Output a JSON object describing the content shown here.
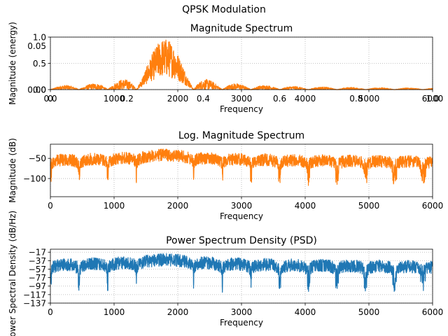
{
  "figure": {
    "suptitle": "QPSK Modulation"
  },
  "chart_data": [
    {
      "id": "magnitude",
      "type": "area",
      "title": "Magnitude Spectrum",
      "xlabel": "Frequency",
      "ylabel": "Magnitude (energy)",
      "xlim": [
        0,
        6000
      ],
      "ylim": [
        0,
        1.0
      ],
      "color": "#ff7f0e",
      "grid": true,
      "xticks": [
        0,
        1000,
        2000,
        3000,
        4000,
        5000,
        6000
      ],
      "xtick_labels": [
        "0",
        "1000",
        "2000",
        "3000",
        "4000",
        "5000",
        "6000"
      ],
      "yticks": [
        0,
        0.5,
        1.0
      ],
      "ytick_labels": [
        "0.0",
        "0.5",
        "1.0"
      ],
      "overlay_xticks": [
        0,
        0.2,
        0.4,
        0.6,
        0.8,
        1.0
      ],
      "overlay_xtick_labels": [
        "0.0",
        "0.2",
        "0.4",
        "0.6",
        "0.8",
        "1.0"
      ],
      "overlay_yticks": [
        0,
        0.05
      ],
      "overlay_ytick_labels": [
        "0.00",
        "0.05"
      ],
      "null_freqs": [
        450,
        900,
        1350,
        2250,
        2700,
        3150,
        3600,
        4050,
        4500,
        4950,
        5400,
        5850
      ],
      "main_lobe": {
        "center": 1800,
        "half_width": 450,
        "peak": 0.97
      },
      "sidelobe_peak": 0.2
    },
    {
      "id": "log-magnitude",
      "type": "area",
      "title": "Log. Magnitude Spectrum",
      "xlabel": "Frequency",
      "ylabel": "Magnitude (dB)",
      "xlim": [
        0,
        6000
      ],
      "ylim": [
        -145,
        -15
      ],
      "color": "#ff7f0e",
      "grid": true,
      "xticks": [
        0,
        1000,
        2000,
        3000,
        4000,
        5000,
        6000
      ],
      "xtick_labels": [
        "0",
        "1000",
        "2000",
        "3000",
        "4000",
        "5000",
        "6000"
      ],
      "yticks": [
        -50,
        -100
      ],
      "ytick_labels": [
        "−50",
        "−100"
      ],
      "envelope_top": {
        "main": -27,
        "sidelobe": -42
      },
      "null_depth": -122
    },
    {
      "id": "psd",
      "type": "area",
      "title": "Power Spectrum Density (PSD)",
      "xlabel": "Frequency",
      "ylabel": "Power Spectral Density (dB/Hz)",
      "xlim": [
        0,
        6000
      ],
      "ylim": [
        -137,
        -10
      ],
      "color": "#1f77b4",
      "grid": true,
      "xticks": [
        0,
        1000,
        2000,
        3000,
        4000,
        5000,
        6000
      ],
      "xtick_labels": [
        "0",
        "1000",
        "2000",
        "3000",
        "4000",
        "5000",
        "6000"
      ],
      "yticks": [
        -17,
        -37,
        -57,
        -77,
        -97,
        -117,
        -137
      ],
      "ytick_labels": [
        "−17",
        "−37",
        "−57",
        "−77",
        "−97",
        "−117",
        "−137"
      ],
      "envelope_top": {
        "main": -20,
        "sidelobe": -35
      },
      "null_depth": -113
    }
  ]
}
